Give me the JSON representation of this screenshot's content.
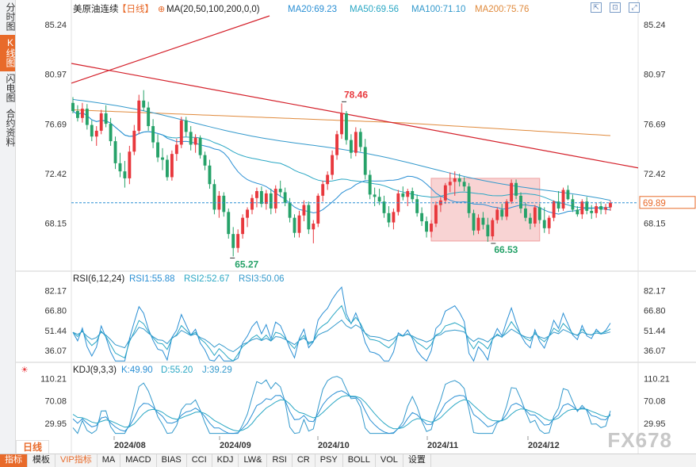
{
  "sidebar": {
    "items": [
      {
        "label": "分时图",
        "active": false
      },
      {
        "label": "K线图",
        "active": true
      },
      {
        "label": "闪电图",
        "active": false
      },
      {
        "label": "合约资料",
        "active": false
      }
    ]
  },
  "header": {
    "instrument": "美原油连续",
    "period_badge": "【日线】",
    "ma_params": "MA(20,50,100,200,0,0)",
    "ma20": "MA20:69.23",
    "ma50": "MA50:69.56",
    "ma100": "MA100:71.10",
    "ma200": "MA200:75.76"
  },
  "rsi_header": {
    "name": "RSI(6,12,24)",
    "rsi1": "RSI1:55.88",
    "rsi2": "RSI2:52.67",
    "rsi3": "RSI3:50.06"
  },
  "kdj_header": {
    "name": "KDJ(9,3,3)",
    "k": "K:49.90",
    "d": "D:55.20",
    "j": "J:39.29"
  },
  "period_button": "日线",
  "bottom_tabs": [
    "指标",
    "模板",
    "VIP指标",
    "MA",
    "MACD",
    "BIAS",
    "CCI",
    "KDJ",
    "LW&",
    "RSI",
    "CR",
    "PSY",
    "BOLL",
    "VOL",
    "设置"
  ],
  "watermark": "FX678",
  "colors": {
    "up": "#e8383d",
    "down": "#26a269",
    "ma20": "#2a8fd4",
    "ma50": "#2aa7c4",
    "ma100": "#3399cc",
    "ma200": "#e08a3c",
    "trendline": "#d4202a",
    "accent": "#e86a2a",
    "rect": "#f6c4c4"
  },
  "chart_data": [
    {
      "type": "candlestick",
      "title": "美原油连续【日线】",
      "ylim": [
        64.0,
        86.0
      ],
      "y_ticks": [
        "85.24",
        "80.97",
        "76.69",
        "72.42",
        "68.15"
      ],
      "x_ticks": [
        "2024/08",
        "2024/09",
        "2024/10",
        "2024/11",
        "2024/12"
      ],
      "current_price": "69.89",
      "annotations": [
        {
          "label": "78.46",
          "type": "high"
        },
        {
          "label": "65.27",
          "type": "low"
        },
        {
          "label": "66.53",
          "type": "low"
        }
      ],
      "highlight_zone": {
        "ylim": [
          66.6,
          72.0
        ]
      },
      "candles": [
        [
          78.5,
          79.0,
          77.6,
          77.8
        ],
        [
          77.8,
          78.3,
          76.9,
          77.2
        ],
        [
          77.2,
          78.5,
          76.8,
          78.0
        ],
        [
          78.0,
          78.4,
          76.2,
          76.6
        ],
        [
          76.6,
          77.0,
          75.2,
          75.6
        ],
        [
          75.6,
          76.5,
          74.8,
          76.1
        ],
        [
          76.1,
          77.9,
          75.8,
          77.6
        ],
        [
          77.6,
          78.3,
          76.4,
          76.7
        ],
        [
          76.7,
          77.2,
          74.8,
          75.2
        ],
        [
          75.2,
          75.6,
          72.8,
          73.3
        ],
        [
          73.3,
          74.2,
          72.1,
          72.6
        ],
        [
          72.6,
          73.5,
          71.2,
          72.0
        ],
        [
          72.0,
          74.8,
          71.5,
          74.3
        ],
        [
          74.3,
          76.6,
          74.0,
          76.1
        ],
        [
          76.1,
          79.2,
          75.8,
          78.7
        ],
        [
          78.7,
          79.6,
          77.8,
          78.1
        ],
        [
          78.1,
          78.6,
          76.1,
          76.5
        ],
        [
          76.5,
          77.1,
          74.6,
          75.1
        ],
        [
          75.1,
          75.8,
          73.4,
          73.8
        ],
        [
          73.8,
          74.6,
          72.7,
          73.6
        ],
        [
          73.6,
          74.0,
          71.8,
          72.1
        ],
        [
          72.1,
          74.4,
          71.8,
          74.1
        ],
        [
          74.1,
          75.4,
          73.5,
          74.9
        ],
        [
          74.9,
          77.3,
          74.6,
          77.0
        ],
        [
          77.0,
          77.3,
          75.6,
          76.0
        ],
        [
          76.0,
          76.5,
          74.4,
          74.9
        ],
        [
          74.9,
          75.8,
          74.2,
          75.5
        ],
        [
          75.5,
          75.7,
          73.7,
          74.0
        ],
        [
          74.0,
          74.3,
          72.7,
          73.1
        ],
        [
          73.1,
          73.6,
          71.1,
          71.5
        ],
        [
          71.5,
          71.9,
          68.9,
          69.3
        ],
        [
          69.3,
          70.9,
          68.6,
          70.5
        ],
        [
          70.5,
          70.8,
          68.7,
          69.1
        ],
        [
          69.1,
          69.4,
          66.8,
          67.2
        ],
        [
          67.2,
          67.8,
          65.27,
          66.0
        ],
        [
          66.0,
          67.6,
          65.6,
          67.2
        ],
        [
          67.2,
          68.9,
          66.8,
          68.6
        ],
        [
          68.6,
          69.5,
          67.8,
          69.3
        ],
        [
          69.3,
          70.6,
          68.9,
          70.3
        ],
        [
          70.3,
          71.2,
          69.5,
          70.9
        ],
        [
          70.9,
          71.3,
          69.5,
          69.8
        ],
        [
          69.8,
          71.0,
          69.3,
          70.7
        ],
        [
          70.7,
          71.1,
          68.9,
          69.4
        ],
        [
          69.4,
          71.4,
          69.0,
          71.1
        ],
        [
          71.1,
          71.8,
          70.4,
          70.8
        ],
        [
          70.8,
          71.2,
          69.6,
          69.9
        ],
        [
          69.9,
          70.3,
          68.2,
          68.6
        ],
        [
          68.6,
          68.9,
          66.9,
          67.3
        ],
        [
          67.3,
          69.2,
          66.9,
          68.8
        ],
        [
          68.8,
          70.1,
          68.3,
          69.7
        ],
        [
          69.7,
          70.0,
          67.2,
          67.6
        ],
        [
          67.6,
          68.4,
          66.4,
          68.1
        ],
        [
          68.1,
          70.7,
          67.8,
          70.5
        ],
        [
          70.5,
          71.8,
          70.0,
          71.5
        ],
        [
          71.5,
          72.6,
          71.0,
          72.3
        ],
        [
          72.3,
          74.4,
          71.9,
          74.0
        ],
        [
          74.0,
          76.1,
          73.6,
          75.8
        ],
        [
          75.8,
          78.46,
          75.4,
          77.6
        ],
        [
          77.6,
          77.8,
          74.9,
          75.3
        ],
        [
          75.3,
          75.8,
          73.7,
          74.2
        ],
        [
          74.2,
          76.4,
          73.9,
          76.0
        ],
        [
          76.0,
          76.3,
          74.3,
          74.7
        ],
        [
          74.7,
          75.4,
          71.9,
          72.3
        ],
        [
          72.3,
          72.7,
          70.2,
          70.6
        ],
        [
          70.6,
          71.2,
          69.6,
          70.4
        ],
        [
          70.4,
          71.1,
          69.7,
          70.0
        ],
        [
          70.0,
          70.5,
          68.6,
          69.0
        ],
        [
          69.0,
          69.6,
          67.8,
          68.2
        ],
        [
          68.2,
          69.4,
          67.6,
          69.1
        ],
        [
          69.1,
          71.0,
          68.8,
          70.7
        ],
        [
          70.7,
          71.3,
          70.1,
          70.4
        ],
        [
          70.4,
          71.1,
          69.6,
          70.9
        ],
        [
          70.9,
          71.2,
          69.9,
          70.2
        ],
        [
          70.2,
          70.6,
          68.7,
          69.0
        ],
        [
          69.0,
          69.5,
          67.9,
          68.3
        ],
        [
          68.3,
          68.7,
          66.9,
          67.4
        ],
        [
          67.4,
          68.4,
          66.9,
          68.1
        ],
        [
          68.1,
          70.0,
          67.8,
          69.7
        ],
        [
          69.7,
          70.4,
          69.1,
          70.1
        ],
        [
          70.1,
          71.6,
          69.8,
          71.4
        ],
        [
          71.4,
          72.5,
          70.8,
          71.7
        ],
        [
          71.7,
          72.6,
          70.5,
          72.0
        ],
        [
          72.0,
          72.4,
          71.3,
          71.7
        ],
        [
          71.7,
          72.1,
          70.9,
          71.3
        ],
        [
          71.3,
          71.6,
          68.6,
          69.0
        ],
        [
          69.0,
          69.3,
          67.1,
          67.5
        ],
        [
          67.5,
          68.9,
          67.2,
          68.6
        ],
        [
          68.6,
          69.1,
          67.6,
          68.0
        ],
        [
          68.0,
          68.6,
          66.53,
          67.0
        ],
        [
          67.0,
          68.6,
          66.7,
          68.4
        ],
        [
          68.4,
          69.5,
          68.1,
          69.3
        ],
        [
          69.3,
          69.8,
          68.4,
          68.7
        ],
        [
          68.7,
          70.2,
          68.4,
          70.0
        ],
        [
          70.0,
          71.9,
          69.8,
          71.6
        ],
        [
          71.6,
          71.9,
          70.2,
          70.5
        ],
        [
          70.5,
          70.8,
          69.0,
          69.4
        ],
        [
          69.4,
          69.9,
          68.3,
          68.6
        ],
        [
          68.6,
          69.0,
          67.6,
          68.1
        ],
        [
          68.1,
          69.7,
          67.8,
          69.5
        ],
        [
          69.5,
          69.8,
          68.1,
          68.4
        ],
        [
          68.4,
          69.5,
          67.3,
          67.7
        ],
        [
          67.7,
          68.8,
          67.2,
          68.6
        ],
        [
          68.6,
          70.1,
          68.3,
          70.0
        ],
        [
          70.0,
          70.9,
          69.1,
          69.4
        ],
        [
          69.4,
          71.2,
          69.2,
          71.0
        ],
        [
          71.0,
          71.4,
          70.1,
          70.2
        ],
        [
          70.2,
          70.6,
          69.1,
          69.3
        ],
        [
          69.3,
          69.6,
          68.7,
          68.9
        ],
        [
          68.9,
          70.2,
          68.5,
          70.0
        ],
        [
          70.0,
          70.4,
          68.9,
          69.2
        ],
        [
          69.2,
          69.7,
          68.5,
          69.0
        ],
        [
          69.0,
          69.9,
          68.6,
          69.6
        ],
        [
          69.6,
          70.0,
          68.9,
          69.3
        ],
        [
          69.3,
          69.8,
          68.9,
          69.5
        ],
        [
          69.5,
          70.1,
          69.2,
          69.9
        ]
      ]
    },
    {
      "type": "line",
      "title": "RSI(6,12,24)",
      "y_ticks": [
        "82.17",
        "66.80",
        "51.44",
        "36.07"
      ],
      "series": [
        {
          "name": "RSI1",
          "last": 55.88
        },
        {
          "name": "RSI2",
          "last": 52.67
        },
        {
          "name": "RSI3",
          "last": 50.06
        }
      ]
    },
    {
      "type": "line",
      "title": "KDJ(9,3,3)",
      "y_ticks": [
        "110.21",
        "70.08",
        "29.95"
      ],
      "series": [
        {
          "name": "K",
          "last": 49.9
        },
        {
          "name": "D",
          "last": 55.2
        },
        {
          "name": "J",
          "last": 39.29
        }
      ]
    }
  ]
}
